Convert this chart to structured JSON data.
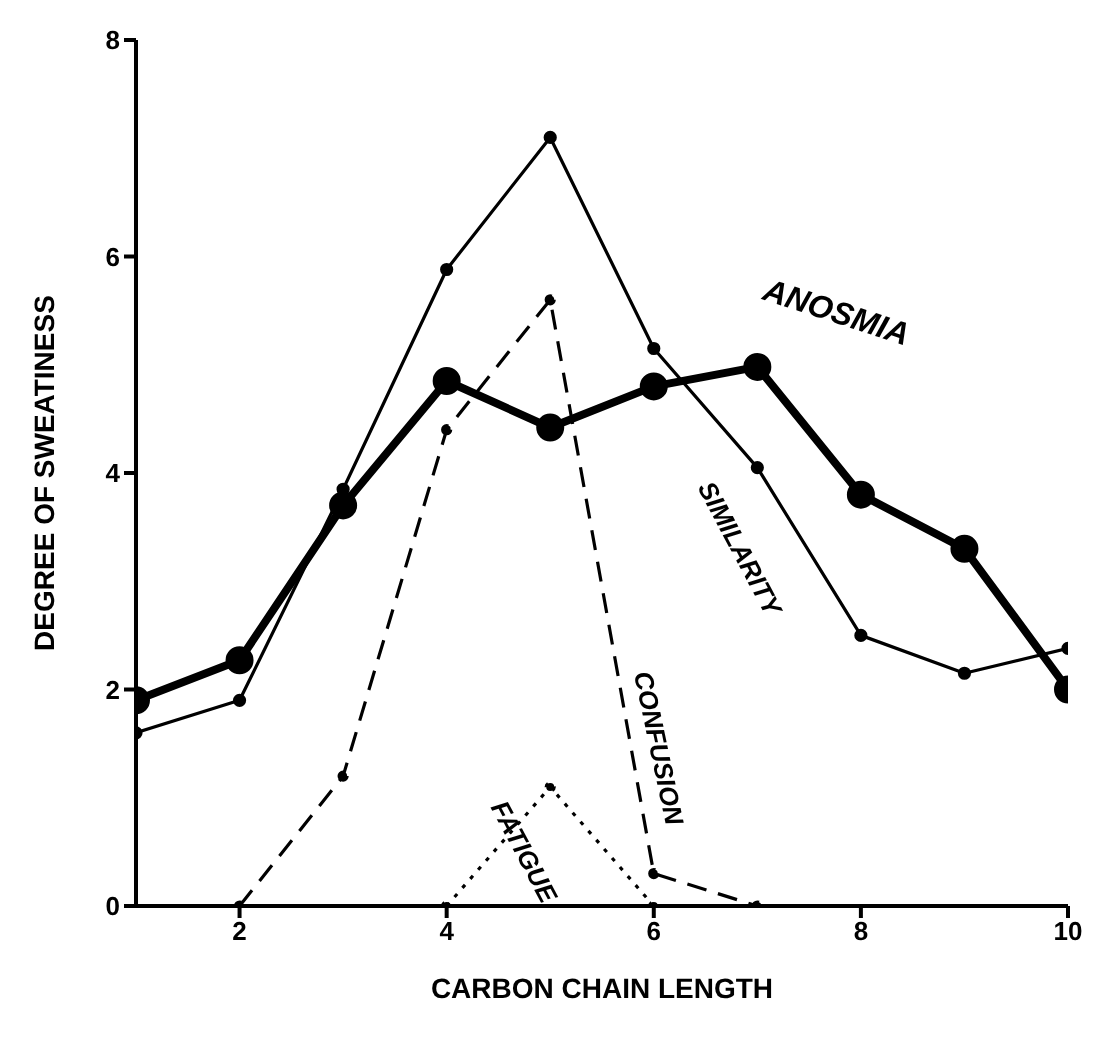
{
  "chart_data": {
    "type": "line",
    "xlabel": "CARBON CHAIN LENGTH",
    "ylabel": "DEGREE OF SWEATINESS",
    "x": [
      1,
      2,
      3,
      4,
      5,
      6,
      7,
      8,
      9,
      10
    ],
    "xlim": [
      1,
      10
    ],
    "xticks": [
      2,
      4,
      6,
      8,
      10
    ],
    "ylim": [
      0,
      8
    ],
    "yticks": [
      0,
      2,
      4,
      6,
      8
    ],
    "grid": false,
    "legend": false,
    "marker": "circle",
    "series": [
      {
        "name": "ANOSMIA",
        "color": "#000000",
        "line_style": "solid",
        "values": [
          1.9,
          2.27,
          3.7,
          4.85,
          4.42,
          4.8,
          4.98,
          3.8,
          3.3,
          2.0
        ]
      },
      {
        "name": "SIMILARITY",
        "color": "#000000",
        "line_style": "solid",
        "values": [
          1.6,
          1.9,
          3.85,
          5.88,
          7.1,
          5.15,
          4.05,
          2.5,
          2.15,
          2.38
        ]
      },
      {
        "name": "CONFUSION",
        "color": "#000000",
        "line_style": "dashed",
        "values": [
          null,
          0,
          1.2,
          4.4,
          5.6,
          0.3,
          0,
          null,
          null,
          null
        ]
      },
      {
        "name": "FATIGUE",
        "color": "#000000",
        "line_style": "dotted",
        "values": [
          null,
          null,
          null,
          0,
          1.1,
          0,
          null,
          null,
          null,
          null
        ]
      }
    ]
  }
}
